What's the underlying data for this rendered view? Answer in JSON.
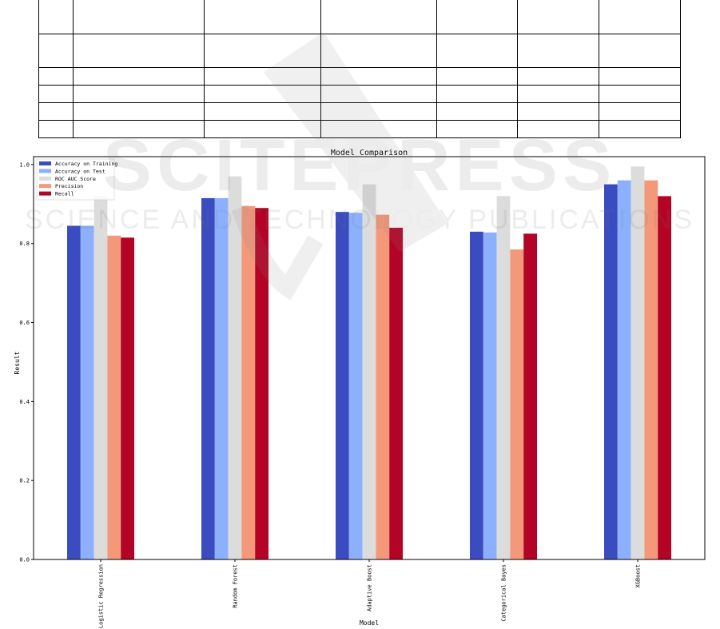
{
  "chart_data": {
    "type": "bar",
    "title": "Model Comparison",
    "xlabel": "Model",
    "ylabel": "Result",
    "ylim": [
      0,
      1.02
    ],
    "yticks": [
      "0.0",
      "0.2",
      "0.4",
      "0.6",
      "0.8",
      "1.0"
    ],
    "grid": false,
    "legend_position": "top-left",
    "categories": [
      "Logistic Regression",
      "Random Forest",
      "Adaptive Boost",
      "Categorical Bayes",
      "XGBoost"
    ],
    "series": [
      {
        "name": "Accuracy on Training",
        "color": "#3b4cc0",
        "values": [
          0.845,
          0.915,
          0.88,
          0.83,
          0.95
        ]
      },
      {
        "name": "Accuracy on Test",
        "color": "#8db0fe",
        "values": [
          0.845,
          0.915,
          0.878,
          0.828,
          0.96
        ]
      },
      {
        "name": "ROC AUC Score",
        "color": "#dddcdc",
        "values": [
          0.92,
          0.97,
          0.95,
          0.92,
          0.995
        ]
      },
      {
        "name": "Precision",
        "color": "#f4987a",
        "values": [
          0.82,
          0.895,
          0.873,
          0.785,
          0.96
        ]
      },
      {
        "name": "Recall",
        "color": "#b40426",
        "values": [
          0.815,
          0.89,
          0.84,
          0.825,
          0.92
        ]
      }
    ]
  },
  "watermark": {
    "line1": "SCITEPRESS",
    "line2": "SCIENCE AND TECHNOLOGY PUBLICATIONS"
  }
}
